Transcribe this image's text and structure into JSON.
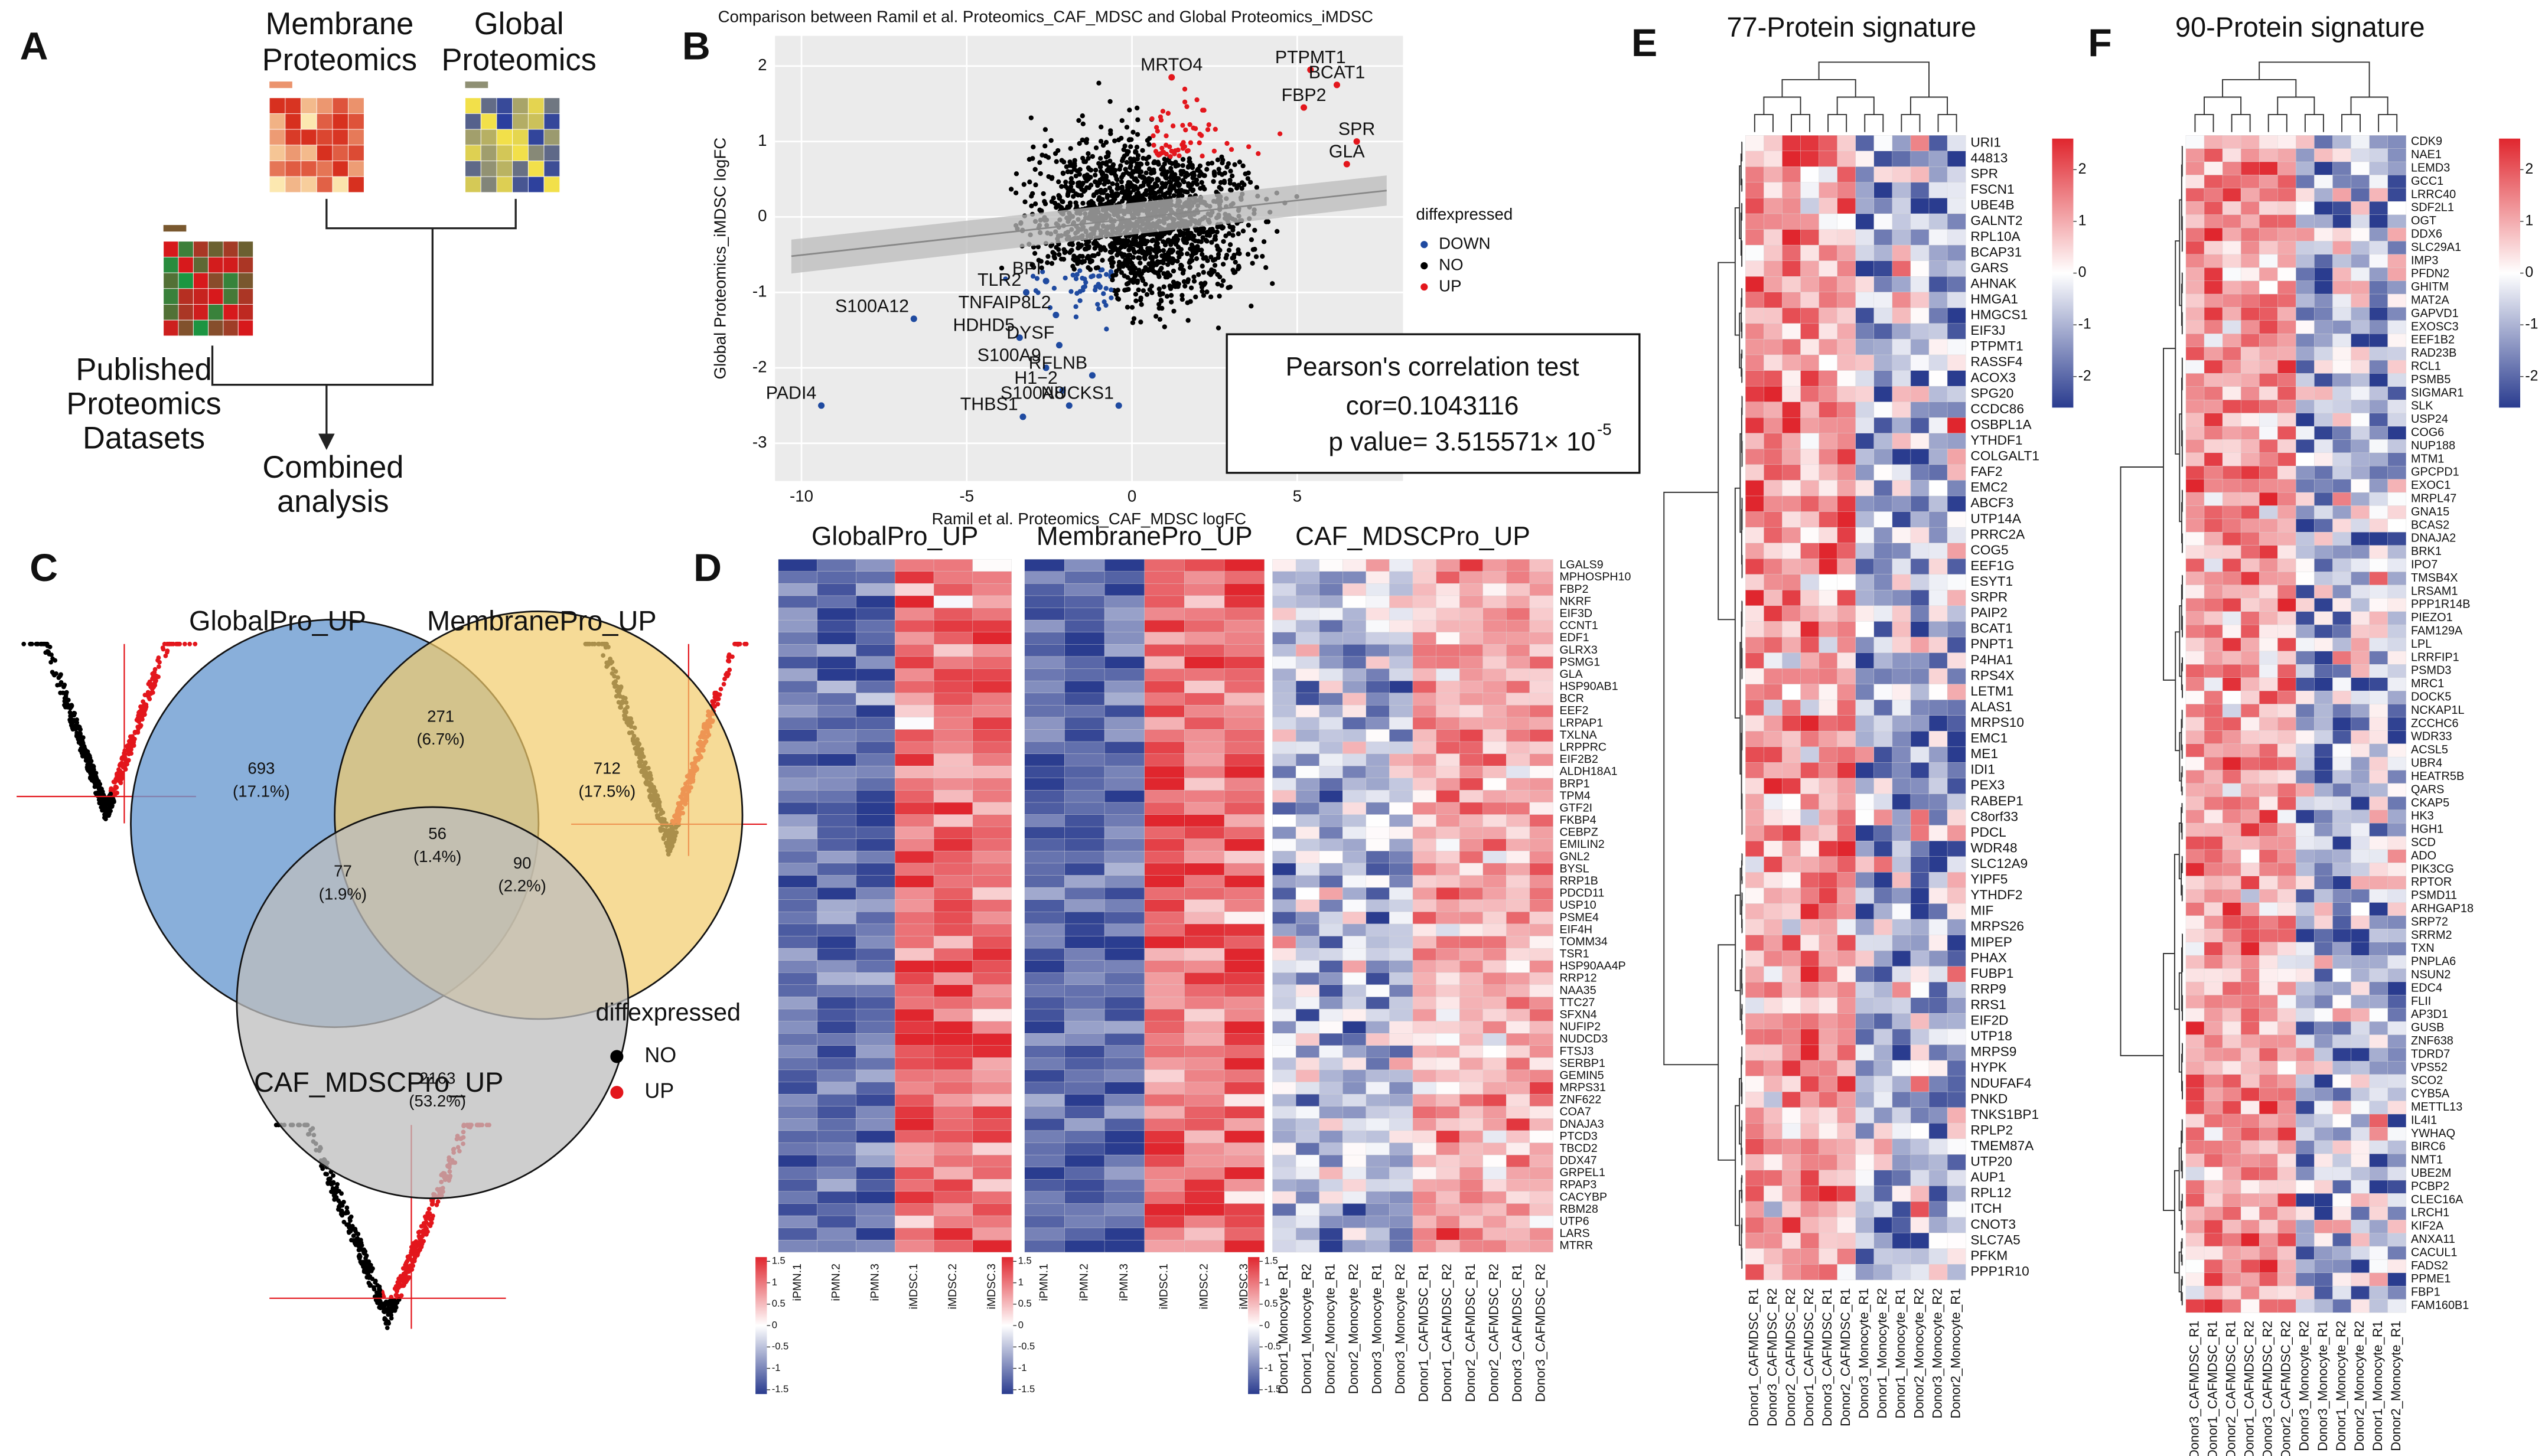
{
  "panel_labels": [
    "A",
    "B",
    "C",
    "D",
    "E",
    "F"
  ],
  "panel_a": {
    "membrane": [
      "Membrane",
      "Proteomics"
    ],
    "global": [
      "Global",
      "Proteomics"
    ],
    "published": [
      "Published",
      "Proteomics",
      "Datasets"
    ],
    "combined": [
      "Combined",
      "analysis"
    ]
  },
  "panel_b": {
    "type": "scatter",
    "title": "Comparison between Ramil et al. Proteomics_CAF_MDSC and Global Proteomics_iMDSC",
    "xlabel": "Ramil et al.  Proteomics_CAF_MDSC logFC",
    "ylabel": "Global Proteomics_iMDSC logFC",
    "xlim": [
      -10.8,
      8.2
    ],
    "ylim": [
      -3.5,
      2.4
    ],
    "xticks": [
      -10,
      -5,
      0,
      5
    ],
    "yticks": [
      -3,
      -2,
      -1,
      0,
      1,
      2
    ],
    "legend_title": "diffexpressed",
    "legend": [
      {
        "name": "DOWN",
        "color": "#1f4aa0"
      },
      {
        "name": "NO",
        "color": "#000000"
      },
      {
        "name": "UP",
        "color": "#e3161c"
      }
    ],
    "points": [
      {
        "label": "MRTO4",
        "x": 1.2,
        "y": 1.85,
        "group": 2
      },
      {
        "label": "PTPMT1",
        "x": 5.4,
        "y": 1.95,
        "group": 2
      },
      {
        "label": "BCAT1",
        "x": 6.2,
        "y": 1.75,
        "group": 2
      },
      {
        "label": "FBP2",
        "x": 5.2,
        "y": 1.45,
        "group": 2
      },
      {
        "label": "SPR",
        "x": 6.8,
        "y": 1.0,
        "group": 2
      },
      {
        "label": "GLA",
        "x": 6.5,
        "y": 0.7,
        "group": 2
      },
      {
        "label": "BPI",
        "x": -2.6,
        "y": -0.85,
        "group": 0
      },
      {
        "label": "TLR2",
        "x": -3.2,
        "y": -1.0,
        "group": 0
      },
      {
        "label": "TNFAIP8L2",
        "x": -2.3,
        "y": -1.3,
        "group": 0
      },
      {
        "label": "S100A12",
        "x": -6.6,
        "y": -1.35,
        "group": 0
      },
      {
        "label": "HDHD5",
        "x": -3.4,
        "y": -1.6,
        "group": 0
      },
      {
        "label": "DYSF",
        "x": -2.2,
        "y": -1.7,
        "group": 0
      },
      {
        "label": "S100A9",
        "x": -2.6,
        "y": -2.0,
        "group": 0
      },
      {
        "label": "RFLNB",
        "x": -1.2,
        "y": -2.1,
        "group": 0
      },
      {
        "label": "H1−2",
        "x": -2.1,
        "y": -2.3,
        "group": 0
      },
      {
        "label": "S100A8",
        "x": -1.9,
        "y": -2.5,
        "group": 0
      },
      {
        "label": "NUCKS1",
        "x": -0.4,
        "y": -2.5,
        "group": 0
      },
      {
        "label": "THBS1",
        "x": -3.3,
        "y": -2.65,
        "group": 0
      },
      {
        "label": "PADI4",
        "x": -9.4,
        "y": -2.5,
        "group": 0
      }
    ],
    "stats": {
      "title": "Pearson's correlation test",
      "cor": "cor=0.1043116",
      "p": "p value= 3.515571× 10",
      "exp": "-5"
    }
  },
  "panel_c": {
    "set_labels": [
      "GlobalPro_UP",
      "MembranePro_UP",
      "CAF_MDSCPro_UP"
    ],
    "regions": [
      {
        "count": 693,
        "percent": "(17.1%)"
      },
      {
        "count": 271,
        "percent": "(6.7%)"
      },
      {
        "count": 712,
        "percent": "(17.5%)"
      },
      {
        "count": 56,
        "percent": "(1.4%)"
      },
      {
        "count": 77,
        "percent": "(1.9%)"
      },
      {
        "count": 90,
        "percent": "(2.2%)"
      },
      {
        "count": 2163,
        "percent": "(53.2%)"
      }
    ],
    "legend_title": "diffexpressed",
    "legend": [
      {
        "name": "NO",
        "color": "#000000"
      },
      {
        "name": "UP",
        "color": "#e3161c"
      }
    ]
  },
  "panel_d": {
    "groups": [
      "GlobalPro_UP",
      "MembranePro_UP",
      "CAF_MDSCPro_UP"
    ],
    "columns": [
      [
        "iPMN.1",
        "iPMN.2",
        "iPMN.3",
        "iMDSC.1",
        "iMDSC.2",
        "iMDSC.3"
      ],
      [
        "iPMN.1",
        "iPMN.2",
        "iPMN.3",
        "iMDSC.1",
        "iMDSC.2",
        "iMDSC.3"
      ],
      [
        "Donor1_Monocyte_R1",
        "Donor1_Monocyte_R2",
        "Donor2_Monocyte_R1",
        "Donor2_Monocyte_R2",
        "Donor3_Monocyte_R1",
        "Donor3_Monocyte_R2",
        "Donor1_CAFMDSC_R1",
        "Donor1_CAFMDSC_R2",
        "Donor2_CAFMDSC_R1",
        "Donor2_CAFMDSC_R2",
        "Donor3_CAFMDSC_R1",
        "Donor3_CAFMDSC_R2"
      ]
    ],
    "scale_ticks": [
      1.5,
      1,
      0.5,
      0,
      -0.5,
      -1,
      -1.5
    ],
    "genes": [
      "LGALS9",
      "MPHOSPH10",
      "FBP2",
      "NKRF",
      "EIF3D",
      "CCNT1",
      "EDF1",
      "GLRX3",
      "PSMG1",
      "GLA",
      "HSP90AB1",
      "BCR",
      "EEF2",
      "LRPAP1",
      "TXLNA",
      "LRPPRC",
      "EIF2B2",
      "ALDH18A1",
      "BRP1",
      "TPM4",
      "GTF2I",
      "FKBP4",
      "CEBPZ",
      "EMILIN2",
      "GNL2",
      "BYSL",
      "RRP1B",
      "PDCD11",
      "USP10",
      "PSME4",
      "EIF4H",
      "TOMM34",
      "TSR1",
      "HSP90AA4P",
      "RRP12",
      "NAA35",
      "TTC27",
      "SFXN4",
      "NUFIP2",
      "NUDCD3",
      "FTSJ3",
      "SERBP1",
      "GEMIN5",
      "MRPS31",
      "ZNF622",
      "COA7",
      "DNAJA3",
      "PTCD3",
      "TBCD2",
      "DDX47",
      "GRPEL1",
      "RPAP3",
      "CACYBP",
      "RBM28",
      "UTP6",
      "LARS",
      "MTRR"
    ]
  },
  "panel_e": {
    "title": "77-Protein signature",
    "scale_ticks": [
      2,
      1,
      0,
      -1,
      -2
    ],
    "columns": [
      "Donor1_CAFMDSC_R1",
      "Donor3_CAFMDSC_R2",
      "Donor2_CAFMDSC_R2",
      "Donor1_CAFMDSC_R2",
      "Donor3_CAFMDSC_R1",
      "Donor2_CAFMDSC_R1",
      "Donor3_Monocyte_R1",
      "Donor1_Monocyte_R2",
      "Donor1_Monocyte_R1",
      "Donor2_Monocyte_R2",
      "Donor3_Monocyte_R2",
      "Donor2_Monocyte_R1"
    ],
    "genes": [
      "URI1",
      "44813",
      "SPR",
      "FSCN1",
      "UBE4B",
      "GALNT2",
      "RPL10A",
      "BCAP31",
      "GARS",
      "AHNAK",
      "HMGA1",
      "HMGCS1",
      "EIF3J",
      "PTPMT1",
      "RASSF4",
      "ACOX3",
      "SPG20",
      "CCDC86",
      "OSBPL1A",
      "YTHDF1",
      "COLGALT1",
      "FAF2",
      "EMC2",
      "ABCF3",
      "UTP14A",
      "PRRC2A",
      "COG5",
      "EEF1G",
      "ESYT1",
      "SRPR",
      "PAIP2",
      "BCAT1",
      "PNPT1",
      "P4HA1",
      "RPS4X",
      "LETM1",
      "ALAS1",
      "MRPS10",
      "EMC1",
      "ME1",
      "IDI1",
      "PEX3",
      "RABEP1",
      "C8orf33",
      "PDCL",
      "WDR48",
      "SLC12A9",
      "YIPF5",
      "YTHDF2",
      "MIF",
      "MRPS26",
      "MIPEP",
      "PHAX",
      "FUBP1",
      "RRP9",
      "RRS1",
      "EIF2D",
      "UTP18",
      "MRPS9",
      "HYPK",
      "NDUFAF4",
      "PNKD",
      "TNKS1BP1",
      "RPLP2",
      "TMEM87A",
      "UTP20",
      "AUP1",
      "RPL12",
      "ITCH",
      "CNOT3",
      "SLC7A5",
      "PFKM",
      "PPP1R10"
    ]
  },
  "panel_f": {
    "title": "90-Protein signature",
    "scale_ticks": [
      2,
      1,
      0,
      -1,
      -2
    ],
    "columns": [
      "Donor3_CAFMDSC_R1",
      "Donor1_CAFMDSC_R1",
      "Donor2_CAFMDSC_R1",
      "Donor1_CAFMDSC_R2",
      "Donor3_CAFMDSC_R2",
      "Donor2_CAFMDSC_R2",
      "Donor3_Monocyte_R2",
      "Donor3_Monocyte_R1",
      "Donor1_Monocyte_R2",
      "Donor2_Monocyte_R2",
      "Donor1_Monocyte_R1",
      "Donor2_Monocyte_R1"
    ],
    "genes": [
      "CDK9",
      "NAE1",
      "LEMD3",
      "GCC1",
      "LRRC40",
      "SDF2L1",
      "OGT",
      "DDX6",
      "SLC29A1",
      "IMP3",
      "PFDN2",
      "GHITM",
      "MAT2A",
      "GAPVD1",
      "EXOSC3",
      "EEF1B2",
      "RAD23B",
      "RCL1",
      "PSMB5",
      "SIGMAR1",
      "SLK",
      "USP24",
      "COG6",
      "NUP188",
      "MTM1",
      "GPCPD1",
      "EXOC1",
      "MRPL47",
      "GNA15",
      "BCAS2",
      "DNAJA2",
      "BRK1",
      "IPO7",
      "TMSB4X",
      "LRSAM1",
      "PPP1R14B",
      "PIEZO1",
      "FAM129A",
      "LPL",
      "LRRFIP1",
      "PSMD3",
      "MRC1",
      "DOCK5",
      "NCKAP1L",
      "ZCCHC6",
      "WDR33",
      "ACSL5",
      "UBR4",
      "HEATR5B",
      "QARS",
      "CKAP5",
      "HK3",
      "HGH1",
      "SCD",
      "ADO",
      "PIK3CG",
      "RPTOR",
      "PSMD11",
      "ARHGAP18",
      "SRP72",
      "SRRM2",
      "TXN",
      "PNPLA6",
      "NSUN2",
      "EDC4",
      "FLII",
      "AP3D1",
      "GUSB",
      "ZNF638",
      "TDRD7",
      "VPS52",
      "SCO2",
      "CYB5A",
      "METTL13",
      "IL4I1",
      "YWHAQ",
      "BIRC6",
      "NMT1",
      "UBE2M",
      "PCBP2",
      "CLEC16A",
      "LRCH1",
      "KIF2A",
      "ANXA11",
      "CACUL1",
      "FADS2",
      "PPME1",
      "FBP1",
      "FAM160B1"
    ]
  }
}
